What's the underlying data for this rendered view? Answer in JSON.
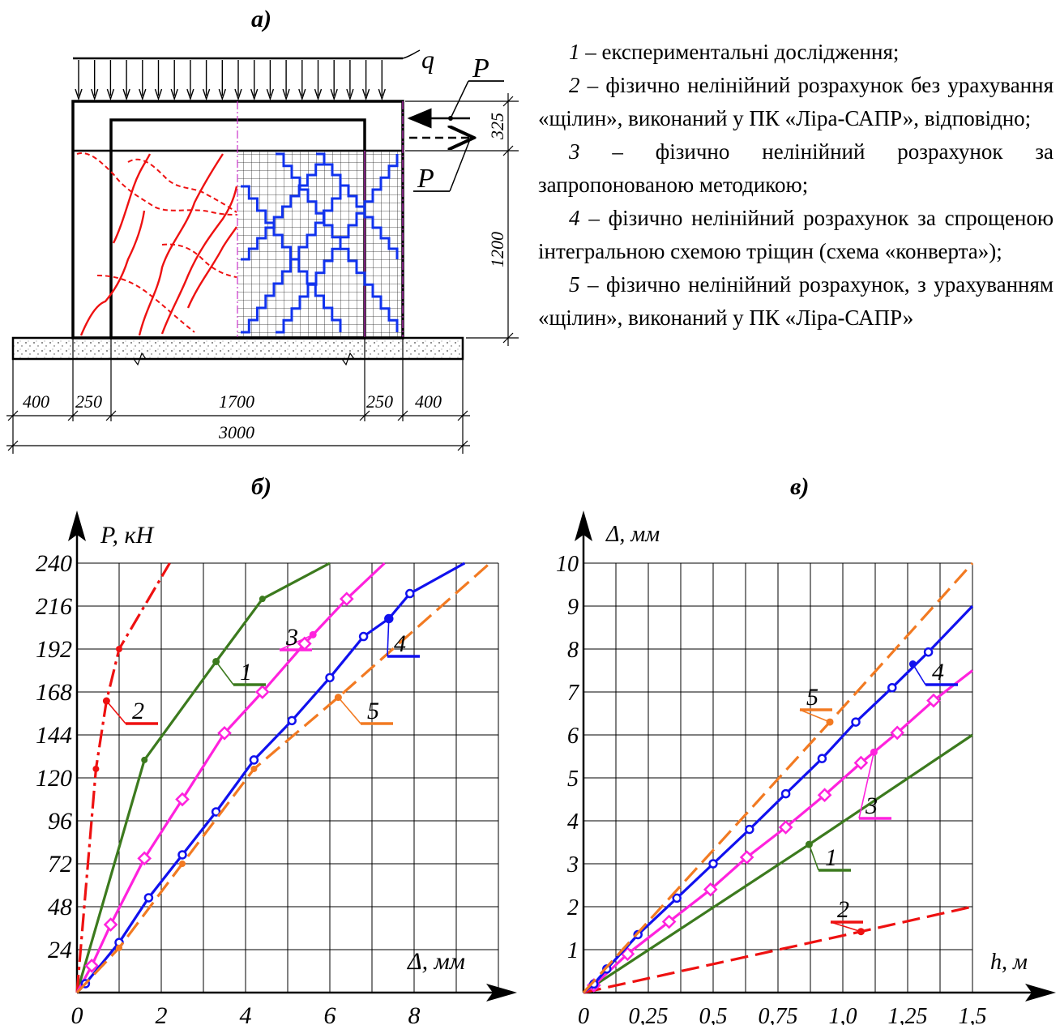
{
  "labels": {
    "panel_a": "а)",
    "panel_b": "б)",
    "panel_c": "в)"
  },
  "scheme": {
    "load_q": "q",
    "force_top": "P",
    "force_bottom": "P",
    "dim_top": "325",
    "dim_height": "1200",
    "dims_bottom": [
      "400",
      "250",
      "1700",
      "250",
      "400"
    ],
    "dim_total": "3000"
  },
  "legend": [
    {
      "num": "1",
      "text": " – експериментальні дослідження;"
    },
    {
      "num": "2",
      "text": " – фізично нелінійний розрахунок без урахування «щілин», виконаний у ПК «Ліра-САПР», відповідно;"
    },
    {
      "num": "3",
      "text": " – фізично нелінійний розрахунок за запропонованою методикою;"
    },
    {
      "num": "4",
      "text": " – фізично нелінійний розрахунок за спрощеною інтегральною схемою тріщин (схема «конверта»);"
    },
    {
      "num": "5",
      "text": " – фізично нелінійний розрахунок, з урахуванням «щілин», виконаний у ПК «Ліра-САПР»"
    }
  ],
  "chart_data": [
    {
      "type": "line",
      "ylabel": "P, кН",
      "xlabel": "Δ, мм",
      "x_ticks": [
        "0",
        "2",
        "4",
        "6",
        "8"
      ],
      "y_ticks": [
        "24",
        "48",
        "72",
        "96",
        "120",
        "144",
        "168",
        "192",
        "216",
        "240"
      ],
      "xlim": [
        0,
        10
      ],
      "ylim": [
        0,
        240
      ],
      "grid": true,
      "series": [
        {
          "name": "1",
          "color": "#3c7a1e",
          "style": "solid",
          "marker": "dot",
          "x": [
            0,
            1.6,
            3.3,
            4.4,
            6.0
          ],
          "y": [
            0,
            130,
            185,
            220,
            240
          ]
        },
        {
          "name": "2",
          "color": "#ee1111",
          "style": "dashdot",
          "marker": "dot",
          "x": [
            0,
            0.45,
            0.7,
            1.0,
            2.2
          ],
          "y": [
            0,
            125,
            163,
            192,
            240
          ]
        },
        {
          "name": "3",
          "color": "#ff22dd",
          "style": "solid",
          "marker": "square",
          "x": [
            0,
            0.35,
            0.8,
            1.6,
            2.5,
            3.5,
            4.4,
            5.4,
            6.4,
            7.3
          ],
          "y": [
            0,
            15,
            38,
            75,
            108,
            145,
            168,
            195,
            220,
            240
          ]
        },
        {
          "name": "4",
          "color": "#1111ee",
          "style": "solid",
          "marker": "circle",
          "x": [
            0,
            0.2,
            1.0,
            1.7,
            2.5,
            3.3,
            4.2,
            5.1,
            6.0,
            6.8,
            7.4,
            7.9,
            9.2
          ],
          "y": [
            0,
            5,
            28,
            53,
            77,
            101,
            130,
            152,
            176,
            199,
            209,
            223,
            240
          ]
        },
        {
          "name": "5",
          "color": "#f27a22",
          "style": "dashed",
          "marker": "dot",
          "x": [
            0,
            1.0,
            2.5,
            4.2,
            6.2,
            9.8
          ],
          "y": [
            0,
            25,
            72,
            125,
            165,
            240
          ]
        }
      ]
    },
    {
      "type": "line",
      "ylabel": "Δ, мм",
      "xlabel": "h, м",
      "x_ticks": [
        "0",
        "0,25",
        "0,5",
        "0,75",
        "1,0",
        "1,25",
        "1,5"
      ],
      "y_ticks": [
        "1",
        "2",
        "3",
        "4",
        "5",
        "6",
        "7",
        "8",
        "9",
        "10"
      ],
      "xlim": [
        0,
        1.5
      ],
      "ylim": [
        0,
        10
      ],
      "grid": true,
      "series": [
        {
          "name": "1",
          "color": "#3c7a1e",
          "style": "solid",
          "marker": "dot",
          "x": [
            0,
            0.87,
            1.5
          ],
          "y": [
            0,
            3.45,
            6.0
          ]
        },
        {
          "name": "2",
          "color": "#ee1111",
          "style": "dashed",
          "marker": "dot",
          "x": [
            0,
            1.07,
            1.5
          ],
          "y": [
            0,
            1.42,
            2.0
          ]
        },
        {
          "name": "3",
          "color": "#ff22dd",
          "style": "solid",
          "marker": "square",
          "x": [
            0,
            0.04,
            0.17,
            0.33,
            0.49,
            0.63,
            0.78,
            0.93,
            1.07,
            1.21,
            1.35,
            1.5
          ],
          "y": [
            0,
            0.17,
            0.9,
            1.65,
            2.4,
            3.15,
            3.85,
            4.6,
            5.35,
            6.05,
            6.8,
            7.5
          ]
        },
        {
          "name": "4",
          "color": "#1111ee",
          "style": "solid",
          "marker": "circle",
          "x": [
            0,
            0.04,
            0.09,
            0.21,
            0.36,
            0.5,
            0.64,
            0.78,
            0.92,
            1.05,
            1.19,
            1.33,
            1.5
          ],
          "y": [
            0,
            0.2,
            0.55,
            1.35,
            2.2,
            3.0,
            3.8,
            4.63,
            5.45,
            6.3,
            7.1,
            7.93,
            9.0
          ]
        },
        {
          "name": "5",
          "color": "#f27a22",
          "style": "dashed",
          "marker": "dot",
          "x": [
            0,
            0.95,
            1.5
          ],
          "y": [
            0,
            6.3,
            10.0
          ]
        }
      ]
    }
  ]
}
